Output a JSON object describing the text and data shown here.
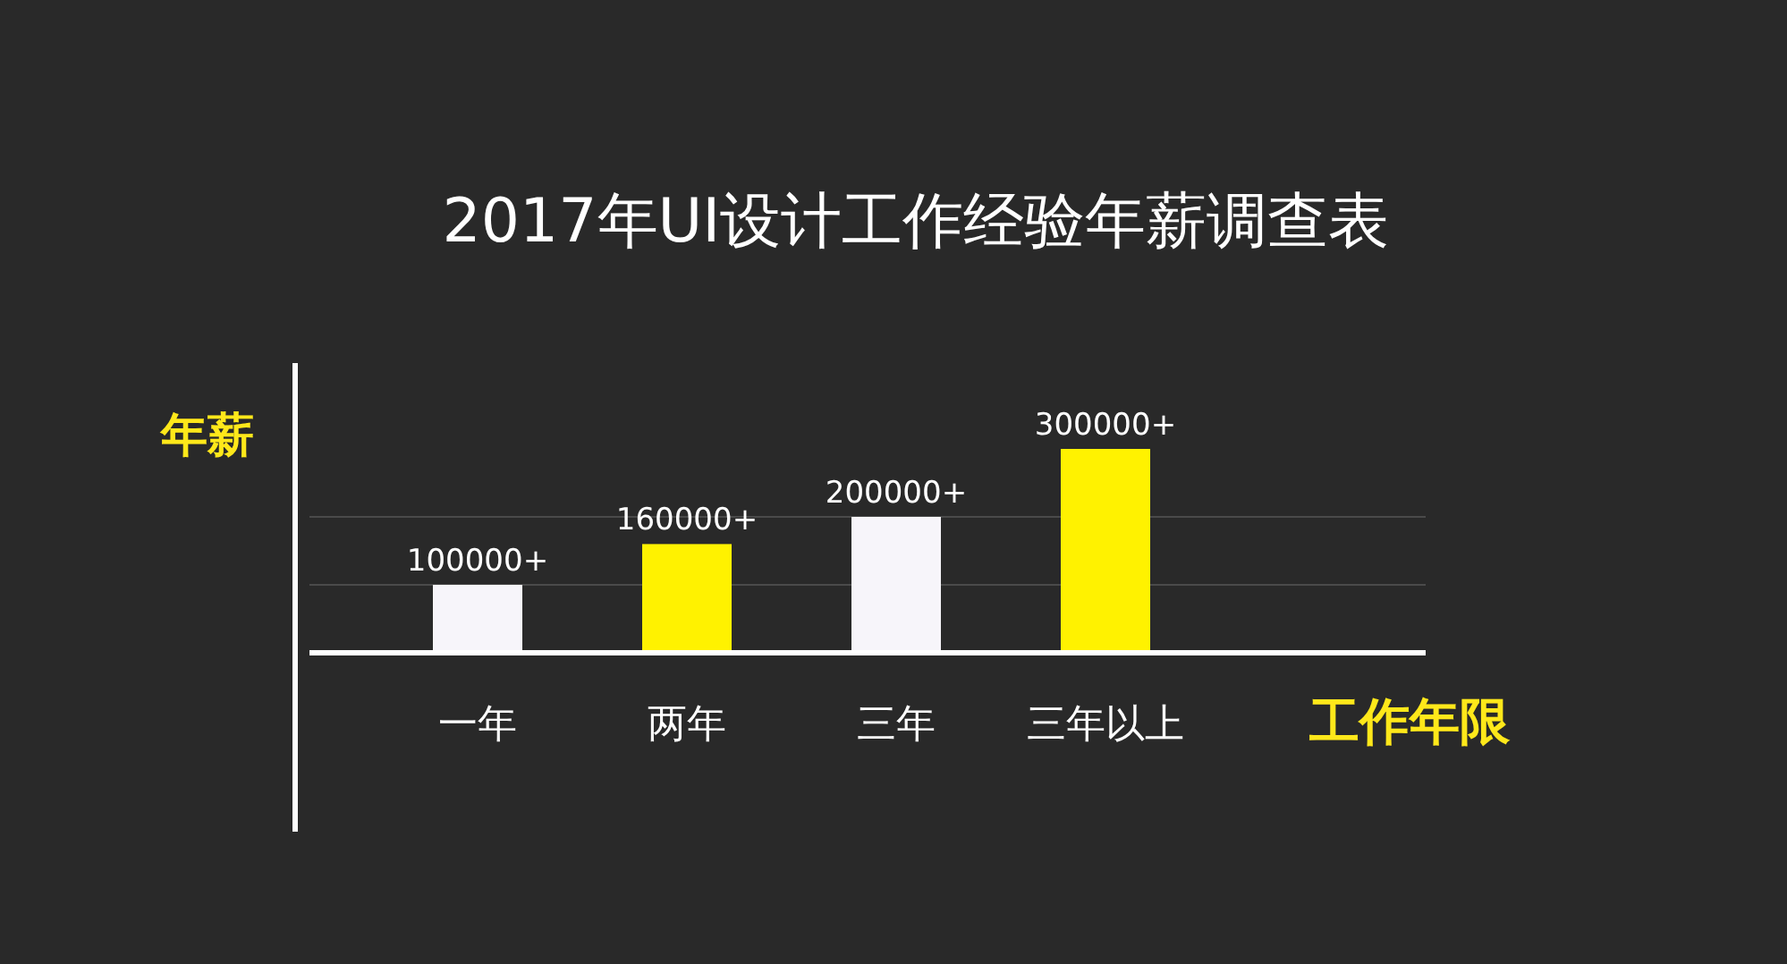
{
  "chart_data": {
    "type": "bar",
    "title": "2017年UI设计工作经验年薪调查表",
    "ylabel": "年薪",
    "xlabel": "工作年限",
    "categories": [
      "一年",
      "两年",
      "三年",
      "三年以上"
    ],
    "values": [
      100000,
      160000,
      200000,
      300000
    ],
    "value_labels": [
      "100000+",
      "160000+",
      "200000+",
      "300000+"
    ],
    "colors": [
      "#f7f5fa",
      "#fff200",
      "#f7f5fa",
      "#fff200"
    ],
    "ref_lines": [
      {
        "axis": "y",
        "value": 100000,
        "color": "#4a4a4a"
      },
      {
        "axis": "y",
        "value": 200000,
        "color": "#4a4a4a"
      }
    ]
  }
}
